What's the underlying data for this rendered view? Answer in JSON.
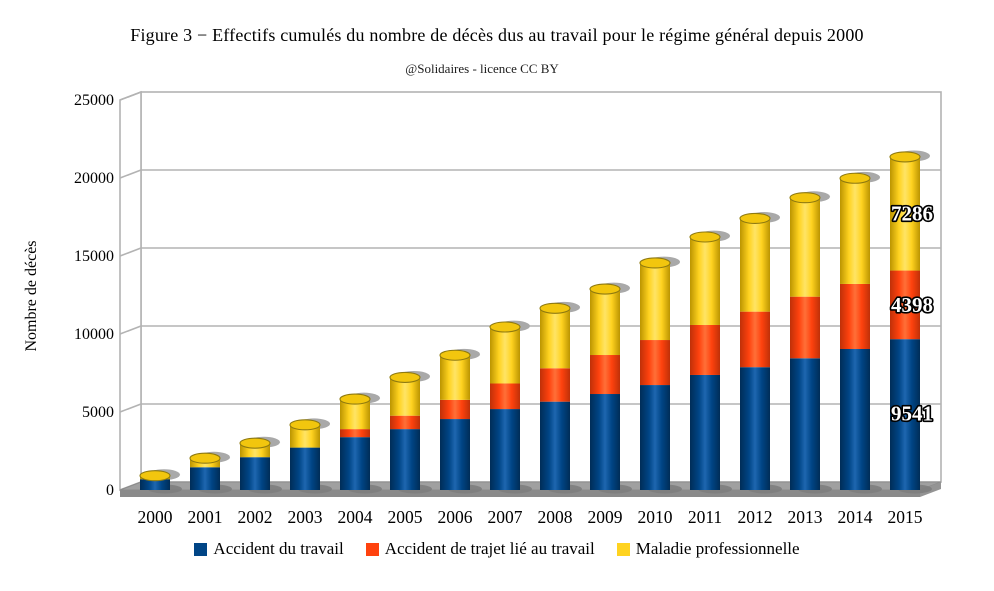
{
  "title": "Figure 3 − Effectifs cumulés du nombre de décès dus au travail pour le régime général depuis 2000",
  "subtitle": "@Solidaires - licence CC BY",
  "y_axis_title": "Nombre de décès",
  "chart_data": {
    "type": "bar",
    "stacked": true,
    "title": "Figure 3 − Effectifs cumulés du nombre de décès dus au travail pour le régime général depuis 2000",
    "subtitle": "@Solidaires - licence CC BY",
    "xlabel": "",
    "ylabel": "Nombre de décès",
    "ylim": [
      0,
      25000
    ],
    "yticks": [
      0,
      5000,
      10000,
      15000,
      20000,
      25000
    ],
    "grid": true,
    "legend_position": "bottom",
    "categories": [
      "2000",
      "2001",
      "2002",
      "2003",
      "2004",
      "2005",
      "2006",
      "2007",
      "2008",
      "2009",
      "2010",
      "2011",
      "2012",
      "2013",
      "2014",
      "2015"
    ],
    "series": [
      {
        "name": "Accident du travail",
        "color": "#004586",
        "values": [
          560,
          1330,
          1975,
          2590,
          3260,
          3775,
          4420,
          5060,
          5535,
          6025,
          6600,
          7245,
          7745,
          8315,
          8910,
          9541
        ]
      },
      {
        "name": "Accident de trajet lié au travail",
        "color": "#ff420e",
        "values": [
          0,
          0,
          0,
          0,
          515,
          860,
          1230,
          1640,
          2140,
          2500,
          2885,
          3205,
          3560,
          3950,
          4170,
          4398
        ]
      },
      {
        "name": "Maladie professionnelle",
        "color": "#ffd320",
        "values": [
          230,
          580,
          900,
          1460,
          1925,
          2455,
          2860,
          3620,
          3845,
          4230,
          4940,
          5640,
          5975,
          6345,
          6775,
          7286
        ]
      }
    ],
    "data_labels": {
      "category": "2015",
      "values": [
        "9541",
        "4398",
        "7286"
      ]
    }
  }
}
